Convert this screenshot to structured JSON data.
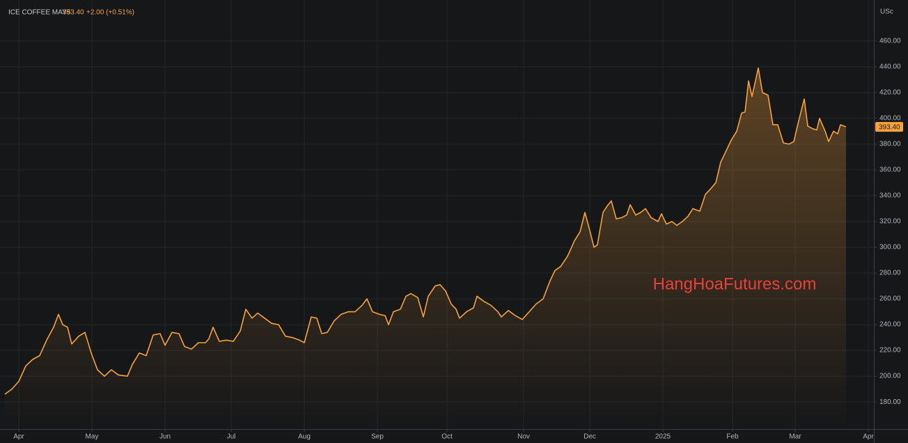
{
  "chart_data": {
    "type": "area",
    "symbol": "ICE COFFEE MAY5",
    "last_price": "393.40",
    "change": "+2.00 (+0.51%)",
    "y_unit": "USc",
    "annotation": "HangHoaFutures.com",
    "grid": true,
    "xlim": [
      0,
      249.6
    ],
    "xticks": [
      {
        "value": 4,
        "label": "Apr"
      },
      {
        "value": 25,
        "label": "May"
      },
      {
        "value": 46,
        "label": "Jun"
      },
      {
        "value": 65,
        "label": "Jul"
      },
      {
        "value": 86,
        "label": "Aug"
      },
      {
        "value": 107,
        "label": "Sep"
      },
      {
        "value": 127,
        "label": "Oct"
      },
      {
        "value": 149,
        "label": "Nov"
      },
      {
        "value": 168,
        "label": "Dec"
      },
      {
        "value": 189,
        "label": "2025"
      },
      {
        "value": 209,
        "label": "Feb"
      },
      {
        "value": 227,
        "label": "Mar"
      },
      {
        "value": 248,
        "label": "Apr"
      }
    ],
    "ylim": [
      159,
      488
    ],
    "yticks": [
      {
        "value": 180,
        "label": "180.00"
      },
      {
        "value": 200,
        "label": "200.00"
      },
      {
        "value": 220,
        "label": "220.00"
      },
      {
        "value": 240,
        "label": "240.00"
      },
      {
        "value": 260,
        "label": "260.00"
      },
      {
        "value": 280,
        "label": "280.00"
      },
      {
        "value": 300,
        "label": "300.00"
      },
      {
        "value": 320,
        "label": "320.00"
      },
      {
        "value": 340,
        "label": "340.00"
      },
      {
        "value": 360,
        "label": "360.00"
      },
      {
        "value": 380,
        "label": "380.00"
      },
      {
        "value": 400,
        "label": "400.00"
      },
      {
        "value": 420,
        "label": "420.00"
      },
      {
        "value": 440,
        "label": "440.00"
      },
      {
        "value": 460,
        "label": "460.00"
      }
    ],
    "x": [
      0,
      2,
      4,
      6,
      8,
      10,
      12,
      14,
      15.4,
      16.6,
      18,
      19.2,
      21.2,
      23,
      24.8,
      26.6,
      28.6,
      30.6,
      32.6,
      35.2,
      36.6,
      38.6,
      40.6,
      42.6,
      44.6,
      46,
      48,
      50,
      51.6,
      53.6,
      55.6,
      57.6,
      58.6,
      59.8,
      61.6,
      63.6,
      65.6,
      67.6,
      69.2,
      71,
      72.6,
      74.6,
      76.6,
      78.6,
      80.6,
      82.6,
      84.6,
      86,
      88,
      89.6,
      91,
      92.6,
      94.6,
      96.6,
      98.6,
      100.6,
      102.6,
      104,
      105.6,
      107.6,
      109.2,
      110.2,
      111.6,
      113.6,
      115.2,
      116.6,
      118.6,
      120.2,
      121.6,
      123.6,
      125,
      126.6,
      128.2,
      129.6,
      130.6,
      132.6,
      134.6,
      135.6,
      137.6,
      139.6,
      141.6,
      142.6,
      144.6,
      146.6,
      148.6,
      150.6,
      152.6,
      154.6,
      156.6,
      158,
      159.6,
      161.6,
      163.6,
      165.2,
      166.6,
      168,
      169.2,
      170.2,
      171.8,
      173,
      174.2,
      175.6,
      177.2,
      178.6,
      179.6,
      181.2,
      182.6,
      184,
      185.6,
      187.6,
      188.6,
      190,
      191.6,
      193,
      194.6,
      196.2,
      197.6,
      199.6,
      201.2,
      202.6,
      204.2,
      205.6,
      207.2,
      208.6,
      210.2,
      211.6,
      212.6,
      213.6,
      214.6,
      216.4,
      217.6,
      219.2,
      220.6,
      222,
      223.6,
      225.2,
      226.6,
      228,
      229.6,
      230.6,
      232,
      233.2,
      234,
      235.6,
      236.6,
      238,
      239.2,
      240,
      241.6
    ],
    "series": [
      {
        "name": "ICE COFFEE MAY5",
        "color": "#f7a23b",
        "values": [
          186,
          190,
          196,
          208,
          213,
          216,
          228,
          238,
          248,
          240,
          238,
          225,
          231,
          234,
          218,
          205,
          200,
          205,
          201,
          200,
          209,
          218,
          216,
          232,
          233,
          224,
          234,
          233,
          223,
          221,
          226,
          226,
          229,
          238,
          227,
          228,
          227,
          235,
          252,
          245,
          249,
          245,
          241,
          240,
          231,
          230,
          228,
          226,
          246,
          245,
          233,
          234,
          243,
          248,
          250,
          250,
          255,
          260,
          250,
          248,
          247,
          240,
          250,
          252,
          262,
          264,
          261,
          246,
          262,
          270,
          271,
          266,
          256,
          252,
          245,
          250,
          253,
          262,
          258,
          255,
          250,
          246,
          251,
          247,
          244,
          250,
          256,
          260,
          274,
          282,
          285,
          293,
          305,
          312,
          327,
          313,
          300,
          302,
          327,
          332,
          336,
          322,
          323,
          325,
          333,
          325,
          327,
          330,
          323,
          320,
          326,
          318,
          320,
          317,
          320,
          324,
          330,
          328,
          341,
          345,
          350,
          366,
          375,
          383,
          390,
          404,
          405,
          429,
          417,
          439,
          420,
          418,
          395,
          395,
          381,
          380,
          382,
          398,
          415,
          394,
          392,
          391,
          400,
          390,
          382,
          390,
          388,
          395,
          393.4
        ]
      }
    ]
  }
}
